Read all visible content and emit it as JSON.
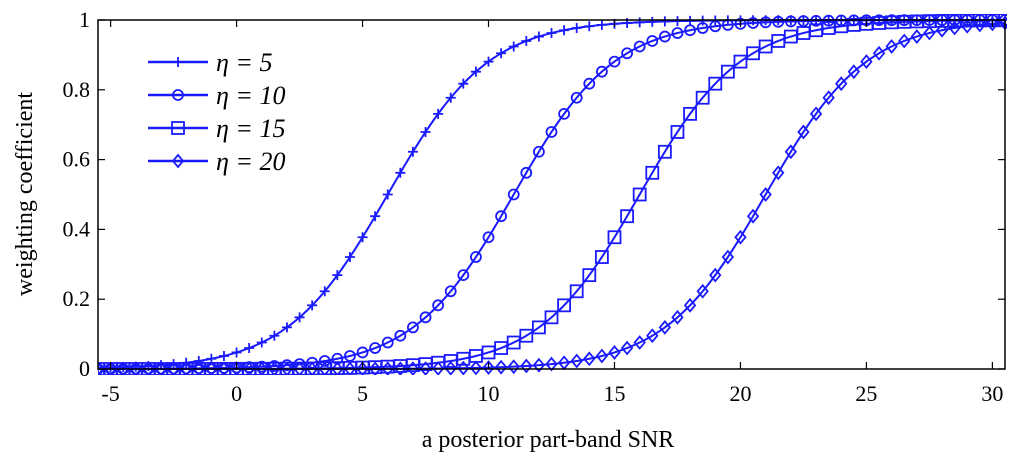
{
  "chart_data": {
    "type": "line",
    "title": "",
    "xlabel": "a posterior part-band SNR",
    "ylabel": "weighting coefficient",
    "xlim": [
      -5.5,
      30.5
    ],
    "ylim": [
      0,
      1
    ],
    "xticks": [
      -5,
      0,
      5,
      10,
      15,
      20,
      25,
      30
    ],
    "yticks": [
      0,
      0.2,
      0.4,
      0.6,
      0.8,
      1
    ],
    "xtick_labels": [
      "-5",
      "0",
      "5",
      "10",
      "15",
      "20",
      "25",
      "30"
    ],
    "ytick_labels": [
      "0",
      "0.2",
      "0.4",
      "0.6",
      "0.8",
      "1"
    ],
    "grid": false,
    "legend_position": "top-left",
    "line_color": "#1a1aff",
    "series": [
      {
        "name": "η = 5",
        "marker": "plus",
        "center": 6,
        "slope": 0.5
      },
      {
        "name": "η = 10",
        "marker": "circle",
        "center": 11,
        "slope": 0.5
      },
      {
        "name": "η = 15",
        "marker": "square",
        "center": 16,
        "slope": 0.5
      },
      {
        "name": "η = 20",
        "marker": "diamond",
        "center": 21,
        "slope": 0.5
      }
    ]
  }
}
